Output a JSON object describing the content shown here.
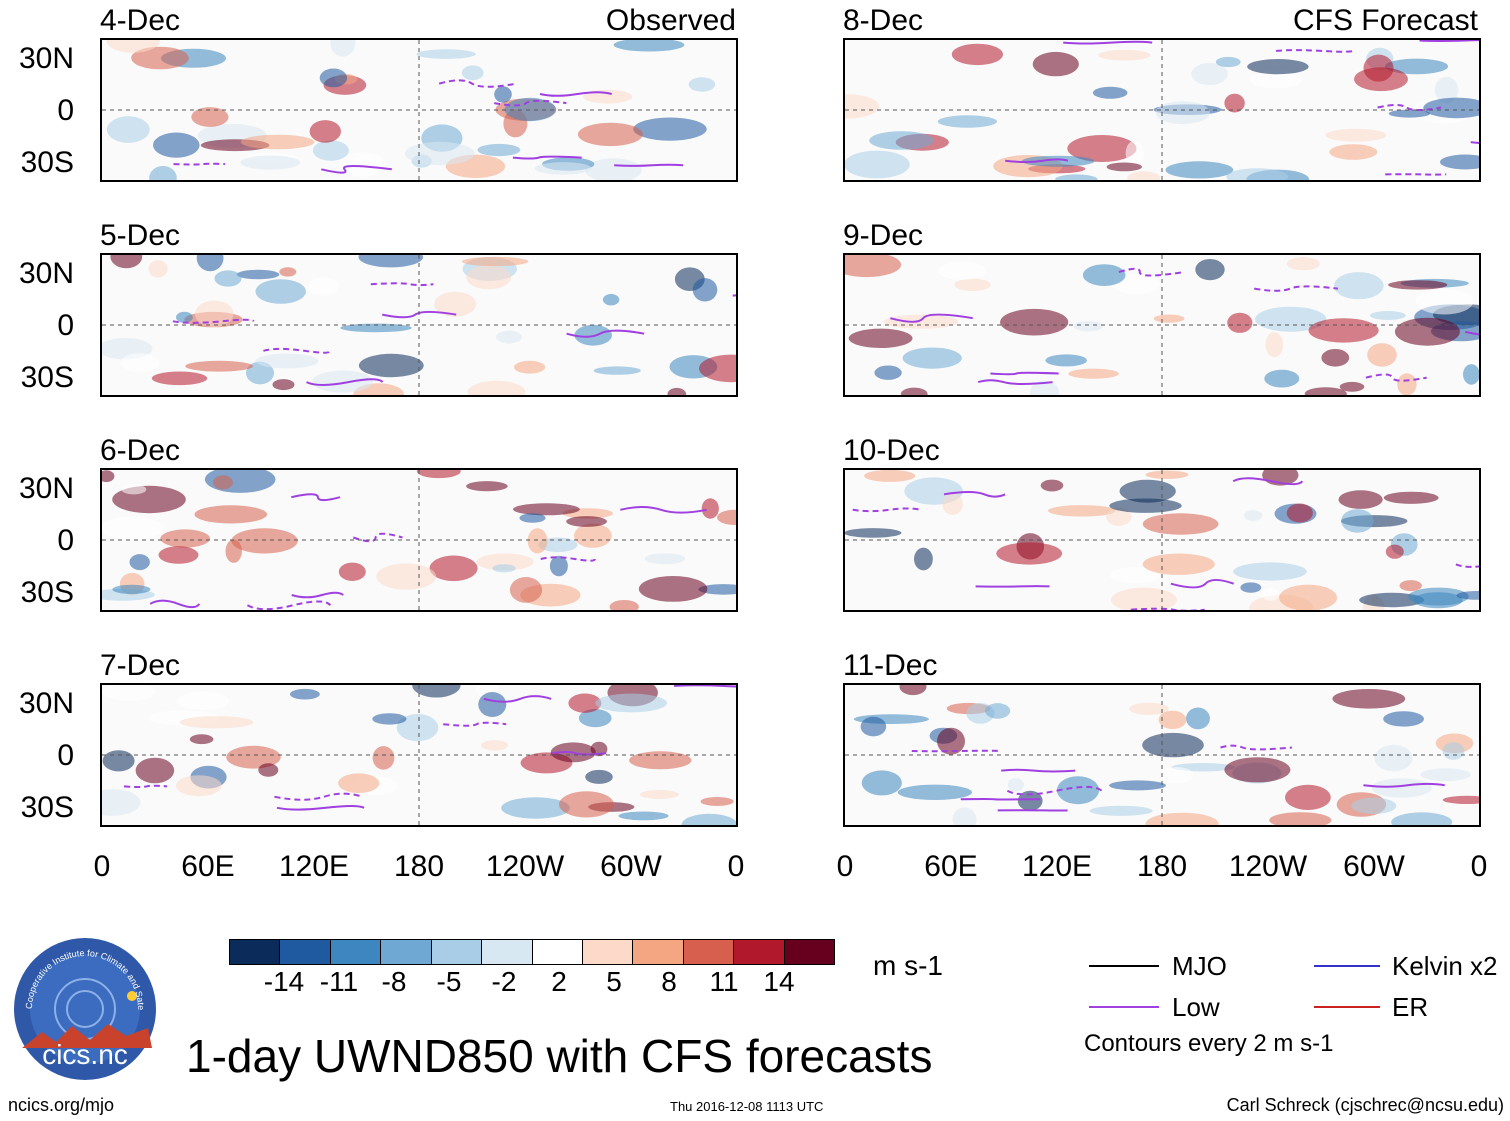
{
  "title": "1-day UWND850 with CFS forecasts",
  "left_column": {
    "label": "Observed",
    "panels": [
      {
        "date": "4-Dec"
      },
      {
        "date": "5-Dec"
      },
      {
        "date": "6-Dec"
      },
      {
        "date": "7-Dec"
      }
    ]
  },
  "right_column": {
    "label": "CFS Forecast",
    "panels": [
      {
        "date": "8-Dec"
      },
      {
        "date": "9-Dec"
      },
      {
        "date": "10-Dec"
      },
      {
        "date": "11-Dec"
      }
    ]
  },
  "lat_ticks": [
    "30N",
    "0",
    "30S"
  ],
  "lon_ticks": [
    "0",
    "60E",
    "120E",
    "180",
    "120W",
    "60W",
    "0"
  ],
  "colorbar": {
    "unit": "m s-1",
    "ticks": [
      "-14",
      "-11",
      "-8",
      "-5",
      "-2",
      "2",
      "5",
      "8",
      "11",
      "14"
    ],
    "colors": [
      "#0b2c5a",
      "#1f5aa0",
      "#3d86c0",
      "#6fa9d3",
      "#a9cde6",
      "#d8e8f3",
      "#ffffff",
      "#fcd9c8",
      "#f4a582",
      "#d6604d",
      "#b2182b",
      "#67001f"
    ]
  },
  "legend": {
    "items": [
      {
        "label": "MJO",
        "color": "#000000"
      },
      {
        "label": "Kelvin x2",
        "color": "#3333cc"
      },
      {
        "label": "Low",
        "color": "#a040e0"
      },
      {
        "label": "ER",
        "color": "#cc2222"
      }
    ],
    "note": "Contours every 2 m s-1"
  },
  "logo": {
    "text": "cics.nc",
    "ring_text": "Cooperative Institute for Climate and Satellites"
  },
  "footer": {
    "url": "ncics.org/mjo",
    "timestamp": "Thu 2016-12-08 1113 UTC",
    "author": "Carl Schreck (cjschrec@ncsu.edu)"
  }
}
